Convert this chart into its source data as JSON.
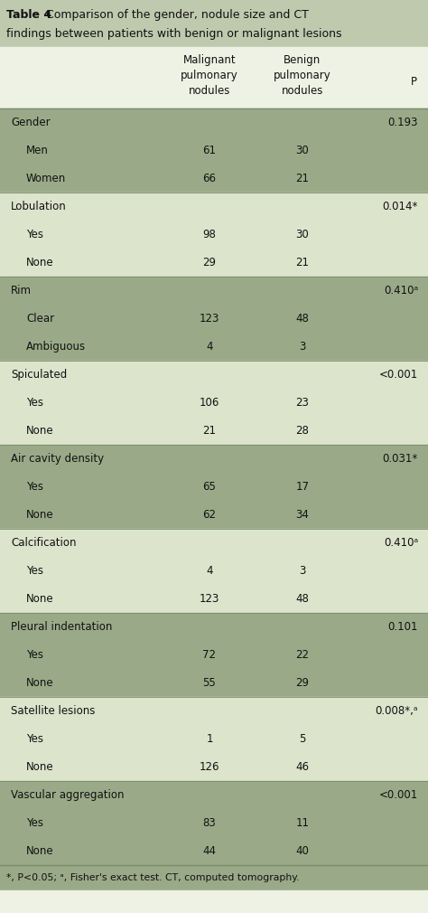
{
  "title_bold": "Table 4",
  "title_rest": " Comparison of the gender, nodule size and CT findings between patients with benign or malignant lesions",
  "col_headers": [
    "Malignant\npulmonary\nnodules",
    "Benign\npulmonary\nnodules",
    "P"
  ],
  "rows": [
    {
      "label": "Gender",
      "indent": false,
      "col1": "",
      "col2": "",
      "p": "0.193",
      "shaded": true
    },
    {
      "label": "Men",
      "indent": true,
      "col1": "61",
      "col2": "30",
      "p": "",
      "shaded": true
    },
    {
      "label": "Women",
      "indent": true,
      "col1": "66",
      "col2": "21",
      "p": "",
      "shaded": true
    },
    {
      "label": "Lobulation",
      "indent": false,
      "col1": "",
      "col2": "",
      "p": "0.014*",
      "shaded": false
    },
    {
      "label": "Yes",
      "indent": true,
      "col1": "98",
      "col2": "30",
      "p": "",
      "shaded": false
    },
    {
      "label": "None",
      "indent": true,
      "col1": "29",
      "col2": "21",
      "p": "",
      "shaded": false
    },
    {
      "label": "Rim",
      "indent": false,
      "col1": "",
      "col2": "",
      "p": "0.410ᵃ",
      "shaded": true
    },
    {
      "label": "Clear",
      "indent": true,
      "col1": "123",
      "col2": "48",
      "p": "",
      "shaded": true
    },
    {
      "label": "Ambiguous",
      "indent": true,
      "col1": "4",
      "col2": "3",
      "p": "",
      "shaded": true
    },
    {
      "label": "Spiculated",
      "indent": false,
      "col1": "",
      "col2": "",
      "p": "<0.001",
      "shaded": false
    },
    {
      "label": "Yes",
      "indent": true,
      "col1": "106",
      "col2": "23",
      "p": "",
      "shaded": false
    },
    {
      "label": "None",
      "indent": true,
      "col1": "21",
      "col2": "28",
      "p": "",
      "shaded": false
    },
    {
      "label": "Air cavity density",
      "indent": false,
      "col1": "",
      "col2": "",
      "p": "0.031*",
      "shaded": true
    },
    {
      "label": "Yes",
      "indent": true,
      "col1": "65",
      "col2": "17",
      "p": "",
      "shaded": true
    },
    {
      "label": "None",
      "indent": true,
      "col1": "62",
      "col2": "34",
      "p": "",
      "shaded": true
    },
    {
      "label": "Calcification",
      "indent": false,
      "col1": "",
      "col2": "",
      "p": "0.410ᵃ",
      "shaded": false
    },
    {
      "label": "Yes",
      "indent": true,
      "col1": "4",
      "col2": "3",
      "p": "",
      "shaded": false
    },
    {
      "label": "None",
      "indent": true,
      "col1": "123",
      "col2": "48",
      "p": "",
      "shaded": false
    },
    {
      "label": "Pleural indentation",
      "indent": false,
      "col1": "",
      "col2": "",
      "p": "0.101",
      "shaded": true
    },
    {
      "label": "Yes",
      "indent": true,
      "col1": "72",
      "col2": "22",
      "p": "",
      "shaded": true
    },
    {
      "label": "None",
      "indent": true,
      "col1": "55",
      "col2": "29",
      "p": "",
      "shaded": true
    },
    {
      "label": "Satellite lesions",
      "indent": false,
      "col1": "",
      "col2": "",
      "p": "0.008*,ᵃ",
      "shaded": false
    },
    {
      "label": "Yes",
      "indent": true,
      "col1": "1",
      "col2": "5",
      "p": "",
      "shaded": false
    },
    {
      "label": "None",
      "indent": true,
      "col1": "126",
      "col2": "46",
      "p": "",
      "shaded": false
    },
    {
      "label": "Vascular aggregation",
      "indent": false,
      "col1": "",
      "col2": "",
      "p": "<0.001",
      "shaded": true
    },
    {
      "label": "Yes",
      "indent": true,
      "col1": "83",
      "col2": "11",
      "p": "",
      "shaded": true
    },
    {
      "label": "None",
      "indent": true,
      "col1": "44",
      "col2": "40",
      "p": "",
      "shaded": true
    }
  ],
  "footnote": "*, P<0.05; ᵃ, Fisher's exact test. CT, computed tomography.",
  "title_bg": "#bfc9ae",
  "shaded_bg": "#9aaa88",
  "unshaded_bg": "#dce4cc",
  "header_bg": "#edf2e4",
  "text_color": "#111111",
  "border_color": "#7a8c6a",
  "title_fontsize": 9.0,
  "body_fontsize": 8.5,
  "foot_fontsize": 7.8
}
